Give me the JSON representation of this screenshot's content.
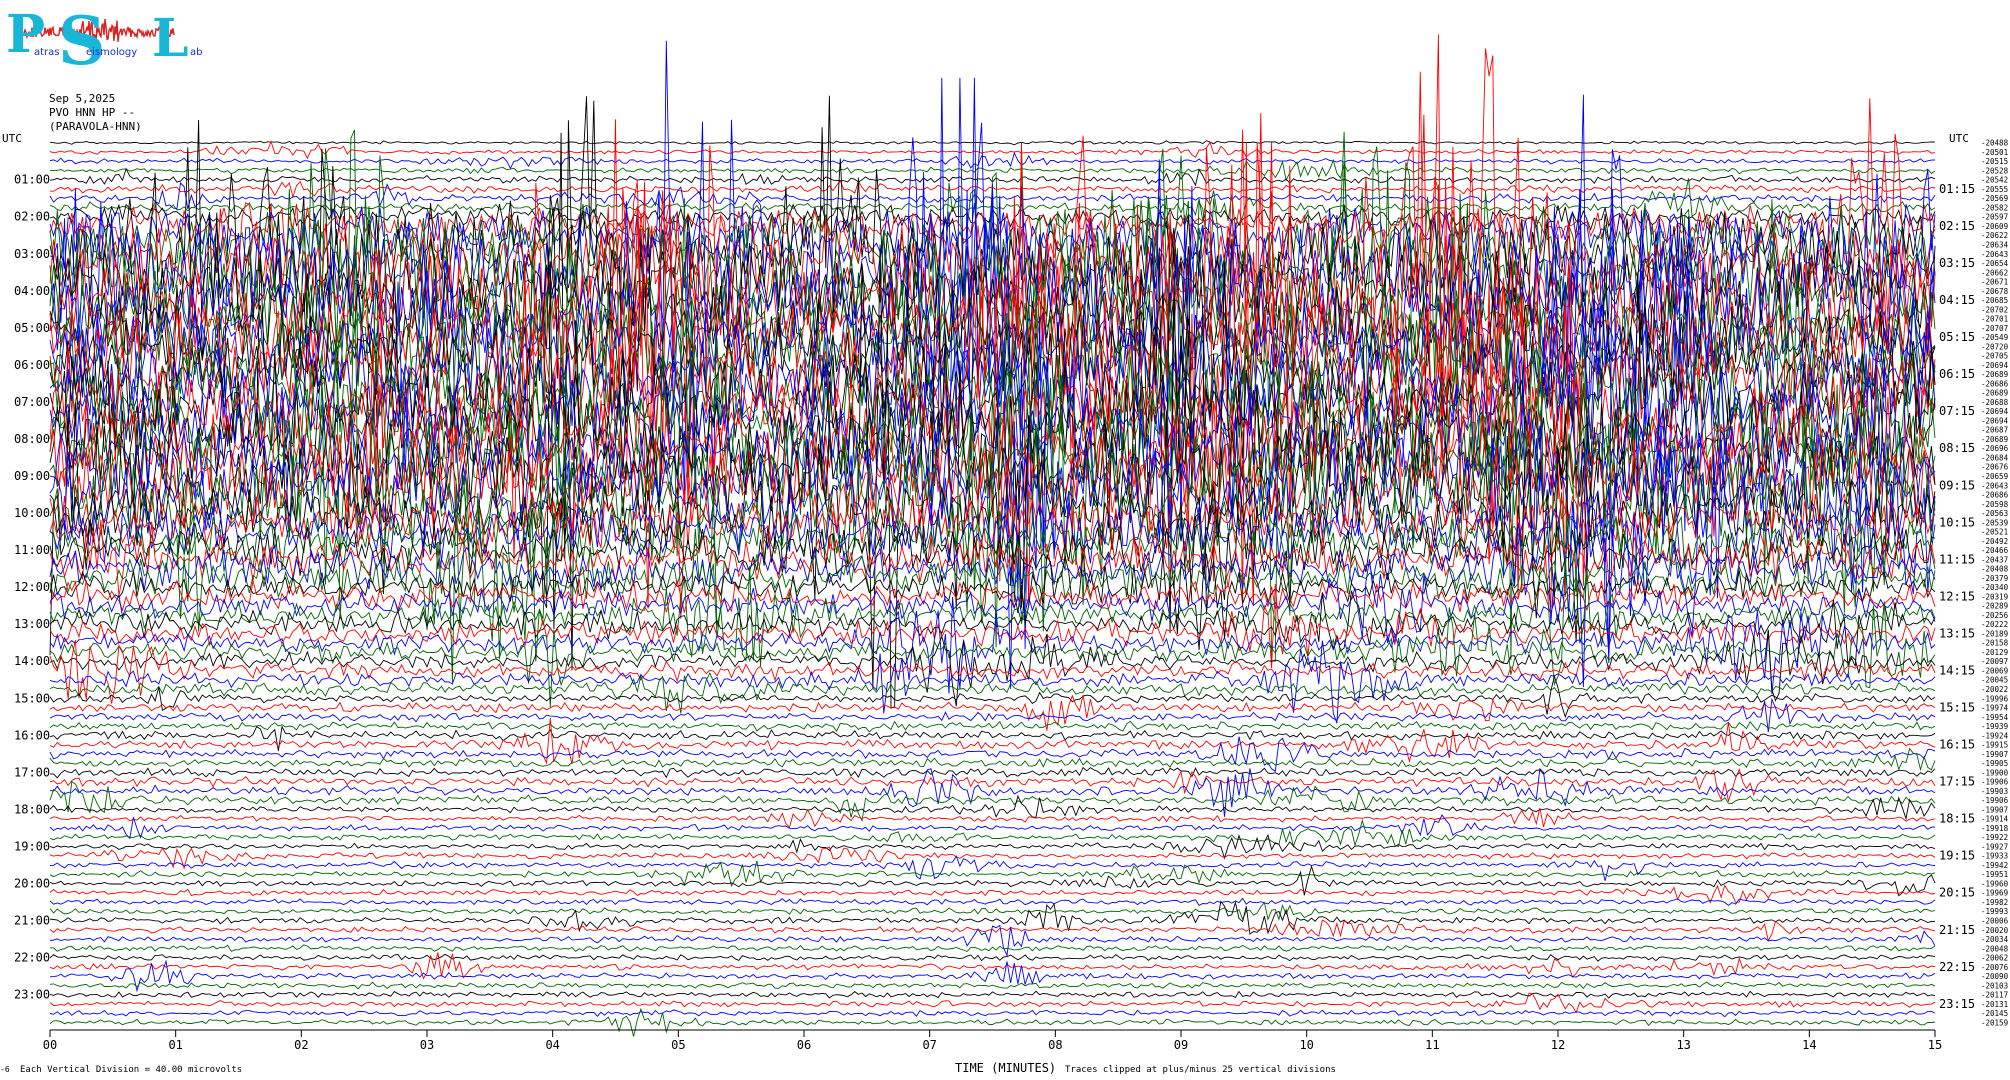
{
  "logo": {
    "letters": [
      "P",
      "S",
      "L"
    ],
    "words": [
      "atras",
      "eismology",
      "ab"
    ],
    "colors": {
      "letters": "#1ab6d8",
      "words": "#1a2fcc",
      "squiggle": "#e02020"
    }
  },
  "header": {
    "date": "Sep 5,2025",
    "station": "PVO HNN HP --",
    "location": "(PARAVOLA-HNN)"
  },
  "chart_data": {
    "type": "line",
    "title": "Sep 5,2025 PVO HNN HP -- (PARAVOLA-HNN)",
    "xlabel": "TIME (MINUTES)",
    "ylabel_left": "UTC",
    "ylabel_right": "UTC",
    "xlim": [
      0,
      15
    ],
    "x_ticks": [
      "00",
      "01",
      "02",
      "03",
      "04",
      "05",
      "06",
      "07",
      "08",
      "09",
      "10",
      "11",
      "12",
      "13",
      "14",
      "15"
    ],
    "left_labels": [
      "01:00",
      "02:00",
      "03:00",
      "04:00",
      "05:00",
      "06:00",
      "07:00",
      "08:00",
      "09:00",
      "10:00",
      "11:00",
      "12:00",
      "13:00",
      "14:00",
      "15:00",
      "16:00",
      "17:00",
      "18:00",
      "19:00",
      "20:00",
      "21:00",
      "22:00",
      "23:00"
    ],
    "right_labels": [
      "01:15",
      "02:15",
      "03:15",
      "04:15",
      "05:15",
      "06:15",
      "07:15",
      "08:15",
      "09:15",
      "10:15",
      "11:15",
      "12:15",
      "13:15",
      "14:15",
      "15:15",
      "16:15",
      "17:15",
      "18:15",
      "19:15",
      "20:15",
      "21:15",
      "22:15",
      "23:15"
    ],
    "trace_offsets": [
      -20488,
      -20501,
      -20515,
      -20528,
      -20542,
      -20555,
      -20569,
      -20582,
      -20597,
      -20609,
      -20622,
      -20634,
      -20643,
      -20654,
      -20662,
      -20671,
      -20678,
      -20685,
      -20702,
      -20701,
      -20707,
      -20549,
      -20720,
      -20705,
      -20694,
      -20689,
      -20686,
      -20689,
      -20688,
      -20694,
      -20694,
      -20687,
      -20689,
      -20696,
      -20684,
      -20676,
      -20659,
      -20643,
      -20686,
      -20598,
      -20563,
      -20539,
      -20521,
      -20492,
      -20466,
      -20437,
      -20408,
      -20379,
      -20340,
      -20319,
      -20289,
      -20256,
      -20222,
      -20189,
      -20158,
      -20129,
      -20097,
      -20069,
      -20045,
      -20022,
      -19996,
      -19974,
      -19954,
      -19939,
      -19924,
      -19915,
      -19907,
      -19905,
      -19900,
      -19906,
      -19903,
      -19906,
      -19907,
      -19914,
      -19918,
      -19922,
      -19927,
      -19933,
      -19942,
      -19951,
      -19960,
      -19969,
      -19982,
      -19993,
      -20006,
      -20020,
      -20034,
      -20048,
      -20062,
      -20076,
      -20090,
      -20103,
      -20117,
      -20131,
      -20145,
      -20159
    ],
    "trace_colors": [
      "#000000",
      "#ff0000",
      "#0000ff",
      "#006400"
    ],
    "trace_count": 96,
    "minutes_per_trace": 15,
    "activity_profile": "low noise 00:00-02:00, intense saturated tremor 03:00-10:00, decaying banded activity 10:00-15:00, quiet background with sparse events 15:00-24:00",
    "footer_left": "Each Vertical Division =   40.00 microvolts",
    "footer_right": "Traces clipped at plus/minus 25 vertical divisions",
    "corner_mark": "-6"
  }
}
